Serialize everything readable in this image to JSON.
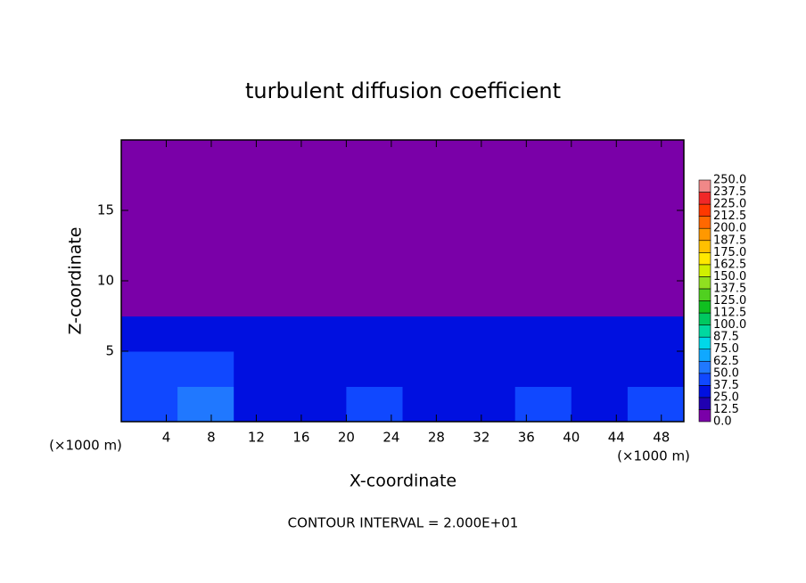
{
  "chart_data": {
    "type": "contour",
    "title": "turbulent diffusion coefficient",
    "xlabel": "X-coordinate",
    "ylabel": "Z-coordinate",
    "x_unit": "(×1000 m)",
    "note": "CONTOUR INTERVAL = 2.000E+01",
    "x": [
      2.5,
      7.5,
      12.5,
      17.5,
      22.5,
      27.5,
      32.5,
      37.5,
      42.5,
      47.5
    ],
    "z": [
      1.25,
      3.75,
      6.25,
      8.75,
      11.25,
      13.75,
      16.25,
      18.75
    ],
    "values": [
      [
        40,
        50,
        35,
        30,
        45,
        35,
        30,
        40,
        35,
        40
      ],
      [
        45,
        40,
        30,
        35,
        30,
        25,
        30,
        35,
        25,
        30
      ],
      [
        30,
        25,
        25,
        30,
        25,
        25,
        25,
        30,
        25,
        25
      ],
      [
        12,
        5,
        3,
        0,
        0,
        0,
        0,
        0,
        0,
        0
      ],
      [
        0,
        0,
        0,
        0,
        0,
        0,
        0,
        0,
        0,
        0
      ],
      [
        0,
        0,
        0,
        0,
        0,
        0,
        0,
        0,
        0,
        0
      ],
      [
        0,
        0,
        0,
        0,
        0,
        0,
        0,
        0,
        0,
        0
      ],
      [
        0,
        0,
        0,
        0,
        0,
        0,
        0,
        0,
        0,
        0
      ]
    ],
    "xlim": [
      0,
      50
    ],
    "ylim": [
      0,
      20
    ],
    "xticks": [
      4,
      8,
      12,
      16,
      20,
      24,
      28,
      32,
      36,
      40,
      44,
      48
    ],
    "yticks": [
      5,
      10,
      15
    ],
    "colorbar_ticks": [
      {
        "value": 0,
        "label": "0.0"
      },
      {
        "value": 12.5,
        "label": "12.5"
      },
      {
        "value": 25,
        "label": "25.0"
      },
      {
        "value": 37.5,
        "label": "37.5"
      },
      {
        "value": 50,
        "label": "50.0"
      },
      {
        "value": 62.5,
        "label": "62.5"
      },
      {
        "value": 75,
        "label": "75.0"
      },
      {
        "value": 87.5,
        "label": "87.5"
      },
      {
        "value": 100,
        "label": "100.0"
      },
      {
        "value": 112.5,
        "label": "112.5"
      },
      {
        "value": 125,
        "label": "125.0"
      },
      {
        "value": 137.5,
        "label": "137.5"
      },
      {
        "value": 150,
        "label": "150.0"
      },
      {
        "value": 162.5,
        "label": "162.5"
      },
      {
        "value": 175,
        "label": "175.0"
      },
      {
        "value": 187.5,
        "label": "187.5"
      },
      {
        "value": 200,
        "label": "200.0"
      },
      {
        "value": 212.5,
        "label": "212.5"
      },
      {
        "value": 225,
        "label": "225.0"
      },
      {
        "value": 237.5,
        "label": "237.5"
      },
      {
        "value": 250,
        "label": "250.0"
      }
    ],
    "colors": [
      "#7a00a8",
      "#2000b0",
      "#0010e0",
      "#1048ff",
      "#2078ff",
      "#10a8ff",
      "#00d8e8",
      "#00d8a0",
      "#00c860",
      "#10c020",
      "#50d020",
      "#90e020",
      "#d0f000",
      "#ffe800",
      "#ffc000",
      "#ff9800",
      "#ff6800",
      "#ff3800",
      "#f02828",
      "#f08888"
    ]
  }
}
